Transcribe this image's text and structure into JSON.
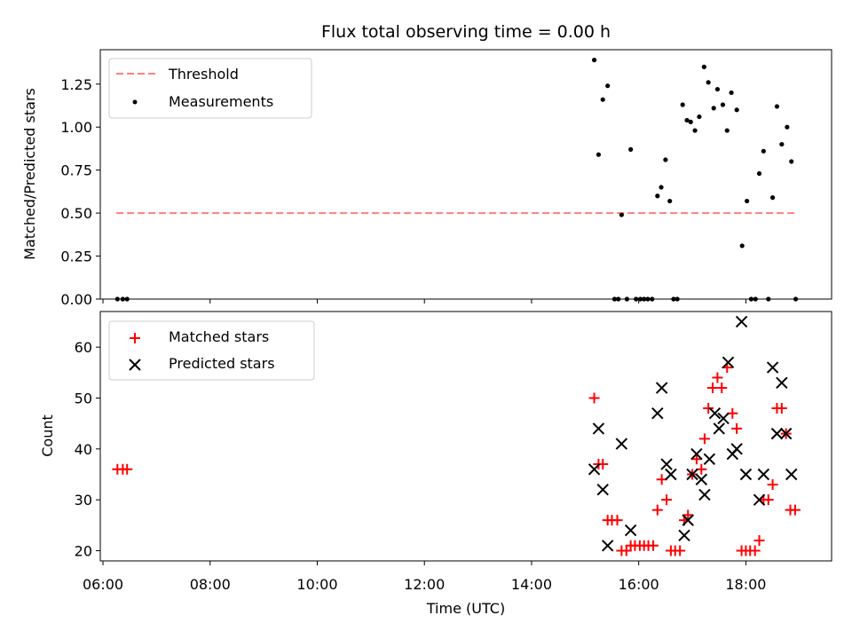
{
  "chart_data": [
    {
      "type": "scatter",
      "title": "Flux total observing time = 0.00 h",
      "xlabel": "",
      "ylabel": "Matched/Predicted stars",
      "ylim": [
        0,
        1.45
      ],
      "xlim": [
        5.95,
        19.6
      ],
      "yticks": [
        0.0,
        0.25,
        0.5,
        0.75,
        1.0,
        1.25
      ],
      "ytick_labels": [
        "0.00",
        "0.25",
        "0.50",
        "0.75",
        "1.00",
        "1.25"
      ],
      "legend_position": "top-left",
      "threshold": {
        "name": "Threshold",
        "value": 0.5,
        "x_range": [
          6.25,
          18.95
        ],
        "color": "#ff7f7f"
      },
      "series": [
        {
          "name": "Measurements",
          "color": "#000000",
          "points": [
            [
              6.27,
              0.0
            ],
            [
              6.37,
              0.0
            ],
            [
              6.45,
              0.0
            ],
            [
              15.17,
              1.39
            ],
            [
              15.25,
              0.84
            ],
            [
              15.33,
              1.16
            ],
            [
              15.42,
              1.24
            ],
            [
              15.55,
              0.0
            ],
            [
              15.62,
              0.0
            ],
            [
              15.68,
              0.49
            ],
            [
              15.78,
              0.0
            ],
            [
              15.85,
              0.87
            ],
            [
              15.95,
              0.0
            ],
            [
              16.03,
              0.0
            ],
            [
              16.1,
              0.0
            ],
            [
              16.17,
              0.0
            ],
            [
              16.25,
              0.0
            ],
            [
              16.35,
              0.6
            ],
            [
              16.42,
              0.65
            ],
            [
              16.5,
              0.81
            ],
            [
              16.58,
              0.57
            ],
            [
              16.65,
              0.0
            ],
            [
              16.72,
              0.0
            ],
            [
              16.82,
              1.13
            ],
            [
              16.9,
              1.04
            ],
            [
              16.97,
              1.03
            ],
            [
              17.05,
              0.98
            ],
            [
              17.13,
              1.06
            ],
            [
              17.22,
              1.35
            ],
            [
              17.3,
              1.26
            ],
            [
              17.4,
              1.11
            ],
            [
              17.47,
              1.22
            ],
            [
              17.57,
              1.13
            ],
            [
              17.65,
              0.98
            ],
            [
              17.73,
              1.2
            ],
            [
              17.83,
              1.1
            ],
            [
              17.93,
              0.31
            ],
            [
              18.02,
              0.57
            ],
            [
              18.1,
              0.0
            ],
            [
              18.18,
              0.0
            ],
            [
              18.25,
              0.73
            ],
            [
              18.33,
              0.86
            ],
            [
              18.42,
              0.0
            ],
            [
              18.5,
              0.59
            ],
            [
              18.58,
              1.12
            ],
            [
              18.67,
              0.9
            ],
            [
              18.77,
              1.0
            ],
            [
              18.85,
              0.8
            ],
            [
              18.93,
              0.0
            ]
          ]
        }
      ]
    },
    {
      "type": "scatter",
      "title": "",
      "xlabel": "Time (UTC)",
      "ylabel": "Count",
      "ylim": [
        18,
        67
      ],
      "xlim": [
        5.95,
        19.6
      ],
      "yticks": [
        20,
        30,
        40,
        50,
        60
      ],
      "ytick_labels": [
        "20",
        "30",
        "40",
        "50",
        "60"
      ],
      "xticks": [
        6,
        8,
        10,
        12,
        14,
        16,
        18
      ],
      "xtick_labels": [
        "06:00",
        "08:00",
        "10:00",
        "12:00",
        "14:00",
        "16:00",
        "18:00"
      ],
      "legend_position": "top-left",
      "series": [
        {
          "name": "Matched stars",
          "color": "#ff0000",
          "marker": "plus",
          "points": [
            [
              6.27,
              36
            ],
            [
              6.37,
              36
            ],
            [
              6.45,
              36
            ],
            [
              15.17,
              50
            ],
            [
              15.25,
              37
            ],
            [
              15.33,
              37
            ],
            [
              15.42,
              26
            ],
            [
              15.5,
              26
            ],
            [
              15.6,
              26
            ],
            [
              15.68,
              20
            ],
            [
              15.77,
              20
            ],
            [
              15.85,
              21
            ],
            [
              15.93,
              21
            ],
            [
              16.02,
              21
            ],
            [
              16.1,
              21
            ],
            [
              16.18,
              21
            ],
            [
              16.27,
              21
            ],
            [
              16.35,
              28
            ],
            [
              16.43,
              34
            ],
            [
              16.52,
              30
            ],
            [
              16.6,
              20
            ],
            [
              16.68,
              20
            ],
            [
              16.77,
              20
            ],
            [
              16.85,
              26
            ],
            [
              16.92,
              27
            ],
            [
              17.0,
              35
            ],
            [
              17.08,
              38
            ],
            [
              17.17,
              36
            ],
            [
              17.23,
              42
            ],
            [
              17.3,
              48
            ],
            [
              17.38,
              52
            ],
            [
              17.47,
              54
            ],
            [
              17.55,
              52
            ],
            [
              17.65,
              56
            ],
            [
              17.75,
              47
            ],
            [
              17.83,
              44
            ],
            [
              17.92,
              20
            ],
            [
              18.0,
              20
            ],
            [
              18.08,
              20
            ],
            [
              18.17,
              20
            ],
            [
              18.25,
              22
            ],
            [
              18.33,
              30
            ],
            [
              18.42,
              30
            ],
            [
              18.5,
              33
            ],
            [
              18.58,
              48
            ],
            [
              18.67,
              48
            ],
            [
              18.75,
              43
            ],
            [
              18.83,
              28
            ],
            [
              18.92,
              28
            ]
          ]
        },
        {
          "name": "Predicted stars",
          "color": "#000000",
          "marker": "x",
          "points": [
            [
              15.17,
              36
            ],
            [
              15.25,
              44
            ],
            [
              15.33,
              32
            ],
            [
              15.42,
              21
            ],
            [
              15.68,
              41
            ],
            [
              15.85,
              24
            ],
            [
              16.35,
              47
            ],
            [
              16.43,
              52
            ],
            [
              16.52,
              37
            ],
            [
              16.6,
              35
            ],
            [
              16.85,
              23
            ],
            [
              16.92,
              26
            ],
            [
              17.0,
              35
            ],
            [
              17.08,
              39
            ],
            [
              17.17,
              34
            ],
            [
              17.23,
              31
            ],
            [
              17.32,
              38
            ],
            [
              17.42,
              47
            ],
            [
              17.5,
              44
            ],
            [
              17.58,
              46
            ],
            [
              17.67,
              57
            ],
            [
              17.75,
              39
            ],
            [
              17.83,
              40
            ],
            [
              17.92,
              65
            ],
            [
              18.0,
              35
            ],
            [
              18.25,
              30
            ],
            [
              18.33,
              35
            ],
            [
              18.5,
              56
            ],
            [
              18.58,
              43
            ],
            [
              18.67,
              53
            ],
            [
              18.75,
              43
            ],
            [
              18.85,
              35
            ]
          ]
        }
      ]
    }
  ]
}
